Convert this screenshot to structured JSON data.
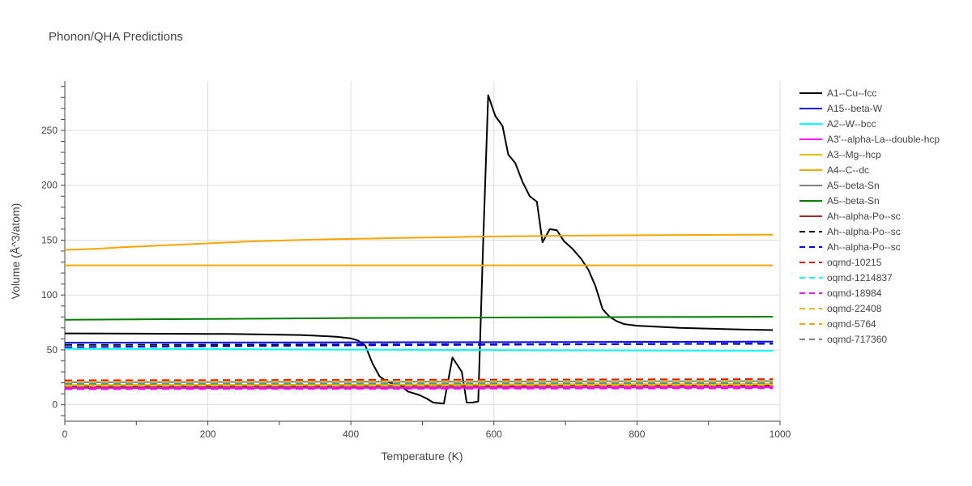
{
  "chart_data": {
    "type": "line",
    "title": "Phonon/QHA Predictions",
    "xlabel": "Temperature (K)",
    "ylabel": "Volume (Å^3/atom)",
    "xlim": [
      0,
      1000
    ],
    "ylim": [
      -15,
      295
    ],
    "xticks": [
      0,
      200,
      400,
      600,
      800,
      1000
    ],
    "yticks": [
      0,
      50,
      100,
      150,
      200,
      250
    ],
    "grid": true,
    "legend_position": "right",
    "series": [
      {
        "name": "A1--Cu--fcc",
        "color": "#000000",
        "dash": "solid",
        "x": [
          0,
          100,
          230,
          330,
          380,
          400,
          410,
          420,
          430,
          440,
          450,
          470,
          480,
          495,
          505,
          515,
          530,
          542,
          555,
          562,
          570,
          578,
          585,
          592,
          602,
          612,
          620,
          630,
          640,
          650,
          660,
          668,
          678,
          688,
          698,
          710,
          722,
          732,
          742,
          752,
          762,
          772,
          782,
          800,
          860,
          950,
          990
        ],
        "y": [
          65,
          64.8,
          64.5,
          63.5,
          62,
          60.5,
          58.5,
          54,
          38,
          26,
          21,
          17,
          12,
          9,
          6,
          2,
          1,
          43,
          30,
          2,
          2,
          3,
          150,
          282,
          263,
          254,
          228,
          220,
          203,
          190,
          185,
          148,
          160,
          159,
          149,
          142,
          133,
          123,
          108,
          87,
          80,
          76,
          73.5,
          72,
          70,
          68.5,
          68
        ]
      },
      {
        "name": "A15--beta-W",
        "color": "#0000ff",
        "dash": "solid",
        "x": [
          0,
          500,
          990
        ],
        "y": [
          56.5,
          57,
          57.5
        ]
      },
      {
        "name": "A2--W--bcc",
        "color": "#00ffff",
        "dash": "solid",
        "x": [
          0,
          500,
          990
        ],
        "y": [
          51,
          50,
          49.2
        ]
      },
      {
        "name": "A3'--alpha-La--double-hcp",
        "color": "#ff00ff",
        "dash": "solid",
        "x": [
          0,
          500,
          990
        ],
        "y": [
          15.2,
          15.5,
          16
        ]
      },
      {
        "name": "A3--Mg--hcp",
        "color": "#e0c000",
        "dash": "solid",
        "x": [
          0,
          500,
          990
        ],
        "y": [
          18,
          18.5,
          19
        ]
      },
      {
        "name": "A4--C--dc",
        "color": "#ffa500",
        "dash": "solid",
        "x": [
          0,
          40,
          80,
          130,
          180,
          230,
          270,
          320,
          370,
          420,
          470,
          520,
          580,
          640,
          700,
          780,
          860,
          990
        ],
        "y": [
          141,
          142,
          143.5,
          145,
          146.5,
          148,
          149,
          150,
          150.8,
          151.4,
          152,
          152.5,
          153.2,
          153.6,
          154,
          154.4,
          154.7,
          155
        ]
      },
      {
        "name": "A4--C--dc",
        "color": "#ffa500",
        "dash": "solid",
        "show_in_legend": false,
        "x": [
          0,
          500,
          990
        ],
        "y": [
          127,
          127,
          127
        ]
      },
      {
        "name": "A5--beta-Sn",
        "color": "#808080",
        "dash": "solid",
        "x": [
          0,
          500,
          990
        ],
        "y": [
          20.5,
          21,
          21.5
        ]
      },
      {
        "name": "A5--beta-Sn",
        "color": "#008000",
        "dash": "solid",
        "x": [
          0,
          100,
          200,
          300,
          400,
          500,
          600,
          700,
          800,
          900,
          990
        ],
        "y": [
          77.5,
          77.8,
          78.2,
          78.6,
          79,
          79.2,
          79.5,
          79.7,
          79.9,
          80.1,
          80.2
        ]
      },
      {
        "name": "Ah--alpha-Po--sc",
        "color": "#a52a2a",
        "dash": "solid",
        "x": [
          0,
          500,
          990
        ],
        "y": [
          16.5,
          17,
          17.5
        ]
      },
      {
        "name": "Ah--alpha-Po--sc",
        "color": "#000000",
        "dash": "dash",
        "x": [
          0,
          500,
          990
        ],
        "y": [
          54.5,
          55,
          55.5
        ]
      },
      {
        "name": "Ah--alpha-Po--sc",
        "color": "#0000ff",
        "dash": "dash",
        "x": [
          0,
          100,
          200,
          300,
          400,
          500,
          600,
          700,
          800,
          900,
          990
        ],
        "y": [
          52.5,
          52.9,
          53.3,
          53.7,
          54.1,
          54.4,
          54.7,
          55,
          55.3,
          55.6,
          55.8
        ]
      },
      {
        "name": "oqmd-10215",
        "color": "#ff0000",
        "dash": "dash",
        "x": [
          0,
          500,
          990
        ],
        "y": [
          22.2,
          22.7,
          23.3
        ]
      },
      {
        "name": "oqmd-1214837",
        "color": "#00ffff",
        "dash": "dash",
        "x": [
          0,
          500,
          990
        ],
        "y": [
          20,
          20.4,
          20.8
        ]
      },
      {
        "name": "oqmd-18984",
        "color": "#ff00ff",
        "dash": "dash",
        "x": [
          0,
          500,
          990
        ],
        "y": [
          14.2,
          14.6,
          15
        ]
      },
      {
        "name": "oqmd-22408",
        "color": "#e0c000",
        "dash": "dash",
        "x": [
          0,
          500,
          990
        ],
        "y": [
          17.2,
          17.6,
          18
        ]
      },
      {
        "name": "oqmd-5764",
        "color": "#ffa500",
        "dash": "dash",
        "x": [
          0,
          500,
          990
        ],
        "y": [
          21,
          21.5,
          22
        ]
      },
      {
        "name": "oqmd-717360",
        "color": "#808080",
        "dash": "dash",
        "x": [
          0,
          500,
          990
        ],
        "y": [
          19,
          19.4,
          19.8
        ]
      }
    ]
  }
}
